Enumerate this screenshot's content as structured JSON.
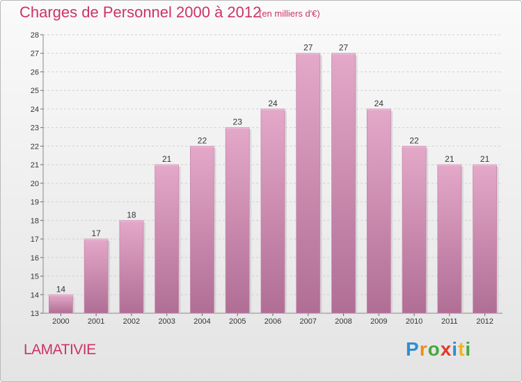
{
  "header": {
    "title": "Charges de Personnel 2000 à 2012",
    "subtitle": "(en milliers d'€)"
  },
  "footer": {
    "commune": "LAMATIVIE",
    "logo_text": "Proxiti",
    "logo_letters": [
      {
        "ch": "P",
        "color": "#2e8fd0"
      },
      {
        "ch": "r",
        "color": "#f08a1c"
      },
      {
        "ch": "o",
        "color": "#48a83c"
      },
      {
        "ch": "x",
        "color": "#e23a2a"
      },
      {
        "ch": "i",
        "color": "#2e8fd0"
      },
      {
        "ch": "t",
        "color": "#f0b41c"
      },
      {
        "ch": "i",
        "color": "#48a83c"
      }
    ]
  },
  "chart_data": {
    "type": "bar",
    "title": "Charges de Personnel 2000 à 2012",
    "subtitle": "(en milliers d'€)",
    "categories": [
      "2000",
      "2001",
      "2002",
      "2003",
      "2004",
      "2005",
      "2006",
      "2007",
      "2008",
      "2009",
      "2010",
      "2011",
      "2012"
    ],
    "values": [
      14,
      17,
      18,
      21,
      22,
      23,
      24,
      27,
      27,
      24,
      22,
      21,
      21
    ],
    "ylim": [
      13,
      28
    ],
    "yticks": [
      13,
      14,
      15,
      16,
      17,
      18,
      19,
      20,
      21,
      22,
      23,
      24,
      25,
      26,
      27,
      28
    ],
    "grid": true,
    "bar_color": "#d98fb8",
    "bar_color_dark": "#b46a96"
  }
}
